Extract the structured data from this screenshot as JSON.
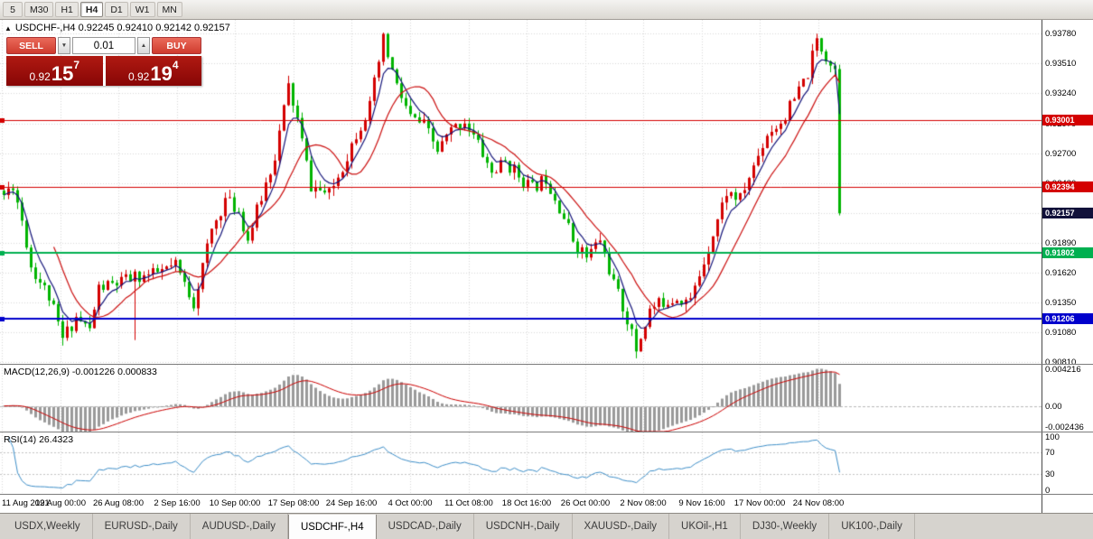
{
  "toolbar": {
    "timeframes": [
      "5",
      "M30",
      "H1",
      "H4",
      "D1",
      "W1",
      "MN"
    ],
    "active_timeframe": "H4"
  },
  "info_bar": {
    "collapse_icon": "▲",
    "text": "USDCHF-,H4 0.92245 0.92410 0.92142 0.92157"
  },
  "trade_widget": {
    "sell_label": "SELL",
    "buy_label": "BUY",
    "volume": "0.01",
    "icons": {
      "decrease": "▼",
      "increase": "▲"
    },
    "sell_price": {
      "prefix": "0.92",
      "big": "15",
      "sup": "7"
    },
    "buy_price": {
      "prefix": "0.92",
      "big": "19",
      "sup": "4"
    }
  },
  "main_axis": {
    "labels": [
      "0.93780",
      "0.93510",
      "0.93240",
      "0.92970",
      "0.92700",
      "0.92430",
      "0.92160",
      "0.91890",
      "0.91620",
      "0.91350",
      "0.91080",
      "0.90810"
    ]
  },
  "levels": [
    {
      "label": "0.93001",
      "value": 0.93001,
      "color": "#d40000",
      "style": "solid"
    },
    {
      "label": "0.92394",
      "value": 0.92394,
      "color": "#d40000",
      "style": "solid"
    },
    {
      "label": "0.92157",
      "value": 0.92157,
      "color": "#11113a",
      "style": "badge-only"
    },
    {
      "label": "0.91802",
      "value": 0.91802,
      "color": "#00b050",
      "style": "solid"
    },
    {
      "label": "0.91206",
      "value": 0.91206,
      "color": "#0000cc",
      "style": "solid"
    }
  ],
  "time_axis": [
    "11 Aug 2021",
    "19 Aug 00:00",
    "26 Aug 08:00",
    "2 Sep 16:00",
    "10 Sep 00:00",
    "17 Sep 08:00",
    "24 Sep 16:00",
    "4 Oct 00:00",
    "11 Oct 08:00",
    "18 Oct 16:00",
    "26 Oct 00:00",
    "2 Nov 08:00",
    "9 Nov 16:00",
    "17 Nov 00:00",
    "24 Nov 08:00"
  ],
  "macd_panel": {
    "label": "MACD(12,26,9) -0.001226 0.000833",
    "axis_labels": [
      "0.004216",
      "0.00",
      "-0.002436"
    ],
    "axis_values": [
      0.004216,
      0,
      -0.002436
    ]
  },
  "rsi_panel": {
    "label": "RSI(14) 26.4323",
    "axis_labels": [
      "100",
      "70",
      "30",
      "0"
    ],
    "axis_values": [
      100,
      70,
      30,
      0
    ],
    "levels": [
      70,
      30
    ]
  },
  "tabs": [
    {
      "label": "USDX,Weekly",
      "active": false
    },
    {
      "label": "EURUSD-,Daily",
      "active": false
    },
    {
      "label": "AUDUSD-,Daily",
      "active": false
    },
    {
      "label": "USDCHF-,H4",
      "active": true
    },
    {
      "label": "USDCAD-,Daily",
      "active": false
    },
    {
      "label": "USDCNH-,Daily",
      "active": false
    },
    {
      "label": "XAUUSD-,Daily",
      "active": false
    },
    {
      "label": "UKOil-,H1",
      "active": false
    },
    {
      "label": "DJ30-,Weekly",
      "active": false
    },
    {
      "label": "UK100-,Daily",
      "active": false
    }
  ],
  "chart_data": {
    "type": "candlestick",
    "symbol": "USDCHF-",
    "timeframe": "H4",
    "ohlc_current": {
      "open": 0.92245,
      "high": 0.9241,
      "low": 0.92142,
      "close": 0.92157
    },
    "price_range": [
      0.90795,
      0.93905
    ],
    "candle_count": 186,
    "last_close": 0.92157,
    "path_anchors": [
      [
        0,
        0.9232
      ],
      [
        2,
        0.9242
      ],
      [
        4,
        0.921
      ],
      [
        6,
        0.9168
      ],
      [
        10,
        0.914
      ],
      [
        13,
        0.9102
      ],
      [
        16,
        0.9122
      ],
      [
        19,
        0.911
      ],
      [
        21,
        0.9148
      ],
      [
        25,
        0.9152
      ],
      [
        29,
        0.9158
      ],
      [
        33,
        0.916
      ],
      [
        38,
        0.9168
      ],
      [
        42,
        0.9135
      ],
      [
        46,
        0.92
      ],
      [
        49,
        0.9228
      ],
      [
        52,
        0.9218
      ],
      [
        54,
        0.9192
      ],
      [
        57,
        0.923
      ],
      [
        60,
        0.9268
      ],
      [
        63,
        0.933
      ],
      [
        65,
        0.93
      ],
      [
        68,
        0.924
      ],
      [
        72,
        0.9232
      ],
      [
        75,
        0.9258
      ],
      [
        78,
        0.9288
      ],
      [
        81,
        0.9312
      ],
      [
        84,
        0.9372
      ],
      [
        87,
        0.933
      ],
      [
        90,
        0.9302
      ],
      [
        93,
        0.9295
      ],
      [
        96,
        0.9272
      ],
      [
        99,
        0.929
      ],
      [
        102,
        0.93
      ],
      [
        105,
        0.9278
      ],
      [
        108,
        0.9252
      ],
      [
        111,
        0.9262
      ],
      [
        114,
        0.925
      ],
      [
        117,
        0.9238
      ],
      [
        120,
        0.9248
      ],
      [
        123,
        0.9222
      ],
      [
        126,
        0.9192
      ],
      [
        129,
        0.9176
      ],
      [
        132,
        0.9192
      ],
      [
        135,
        0.9152
      ],
      [
        138,
        0.912
      ],
      [
        140,
        0.9092
      ],
      [
        143,
        0.9128
      ],
      [
        146,
        0.9136
      ],
      [
        149,
        0.914
      ],
      [
        152,
        0.9136
      ],
      [
        154,
        0.916
      ],
      [
        157,
        0.9198
      ],
      [
        160,
        0.9235
      ],
      [
        163,
        0.9228
      ],
      [
        166,
        0.9258
      ],
      [
        169,
        0.9288
      ],
      [
        172,
        0.9298
      ],
      [
        175,
        0.9318
      ],
      [
        178,
        0.9342
      ],
      [
        180,
        0.9372
      ],
      [
        182,
        0.9358
      ],
      [
        184,
        0.9346
      ],
      [
        185,
        0.92157
      ]
    ],
    "colors": {
      "up": "#d40000",
      "down": "#00b400",
      "ma_fast": "#14147a",
      "ma_slow": "#cc1111",
      "macd_hist": "#9a9a9a",
      "macd_signal": "#cc0000",
      "rsi_line": "#3e8fc9",
      "grid": "#d8d8d8"
    }
  }
}
